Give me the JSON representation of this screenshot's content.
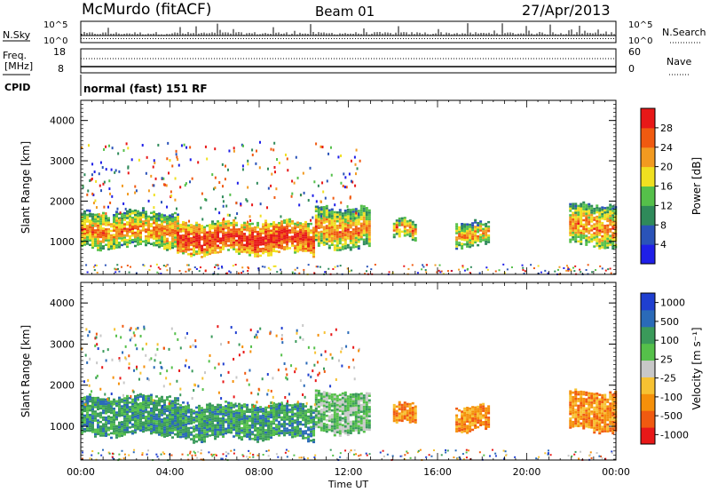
{
  "header": {
    "station": "McMurdo (fitACF)",
    "beam": "Beam 01",
    "date": "27/Apr/2013"
  },
  "top_panels": {
    "nsky_label": "N.Sky",
    "nsearch_label": "N.Search",
    "nsky_ticks": [
      "10^5",
      "10^0"
    ],
    "nsearch_ticks": [
      "10^5",
      "10^0"
    ],
    "freq_label_1": "Freq.",
    "freq_label_2": "[MHz]",
    "freq_ticks": [
      "18",
      "8"
    ],
    "nave_label": "Nave",
    "nave_ticks": [
      "60",
      "0"
    ],
    "cpid_label": "CPID",
    "cpid_text": "normal (fast) 151 RF"
  },
  "colors": {
    "power": [
      "#1f1fe8",
      "#2a53b8",
      "#2f8a5a",
      "#55c04a",
      "#f0e020",
      "#f29a20",
      "#f05a10",
      "#e81818"
    ],
    "velocity": [
      "#e81818",
      "#f05a10",
      "#f5900a",
      "#f7c232",
      "#c8c8c8",
      "#55c04a",
      "#3a9a5a",
      "#2a6ab8",
      "#1f3fd0"
    ]
  },
  "chart_data": [
    {
      "type": "heatmap",
      "parameter": "Power",
      "ylabel": "Slant Range [km]",
      "xlabel": "Time UT",
      "x_ticks": [
        "00:00",
        "04:00",
        "08:00",
        "12:00",
        "16:00",
        "20:00",
        "00:00"
      ],
      "x_range_hours": [
        0,
        24
      ],
      "y_ticks": [
        1000,
        2000,
        3000,
        4000
      ],
      "y_range_km": [
        180,
        4500
      ],
      "colorbar_label": "Power [dB]",
      "colorbar_ticks": [
        "4",
        "8",
        "12",
        "16",
        "20",
        "24",
        "28"
      ],
      "colorbar_range": [
        0,
        32
      ],
      "regions": [
        {
          "t0": 0.0,
          "t1": 4.3,
          "r0": 850,
          "r1": 1700,
          "level": 0.55
        },
        {
          "t0": 4.3,
          "t1": 10.5,
          "r0": 700,
          "r1": 1450,
          "level": 0.9
        },
        {
          "t0": 10.5,
          "t1": 13.0,
          "r0": 850,
          "r1": 1800,
          "level": 0.55
        },
        {
          "t0": 14.0,
          "t1": 15.0,
          "r0": 1050,
          "r1": 1500,
          "level": 0.5
        },
        {
          "t0": 16.8,
          "t1": 18.3,
          "r0": 900,
          "r1": 1450,
          "level": 0.45
        },
        {
          "t0": 21.9,
          "t1": 24.0,
          "r0": 900,
          "r1": 1900,
          "level": 0.55
        }
      ]
    },
    {
      "type": "heatmap",
      "parameter": "Velocity",
      "ylabel": "Slant Range [km]",
      "xlabel": "Time UT",
      "x_ticks": [
        "00:00",
        "04:00",
        "08:00",
        "12:00",
        "16:00",
        "20:00",
        "00:00"
      ],
      "x_range_hours": [
        0,
        24
      ],
      "y_ticks": [
        1000,
        2000,
        3000,
        4000
      ],
      "y_range_km": [
        180,
        4500
      ],
      "colorbar_label": "Velocity [m s⁻¹]",
      "colorbar_ticks": [
        "1000",
        "500",
        "100",
        "25",
        "-25",
        "-100",
        "-500",
        "-1000"
      ],
      "regions": [
        {
          "t0": 0.0,
          "t1": 4.3,
          "r0": 800,
          "r1": 1700,
          "level": 6
        },
        {
          "t0": 4.3,
          "t1": 10.5,
          "r0": 700,
          "r1": 1500,
          "level": 6
        },
        {
          "t0": 10.5,
          "t1": 13.0,
          "r0": 850,
          "r1": 1800,
          "level": 5
        },
        {
          "t0": 14.0,
          "t1": 15.0,
          "r0": 1050,
          "r1": 1500,
          "level": 2
        },
        {
          "t0": 16.8,
          "t1": 18.3,
          "r0": 900,
          "r1": 1450,
          "level": 2
        },
        {
          "t0": 21.9,
          "t1": 24.0,
          "r0": 900,
          "r1": 1800,
          "level": 2
        }
      ]
    }
  ]
}
